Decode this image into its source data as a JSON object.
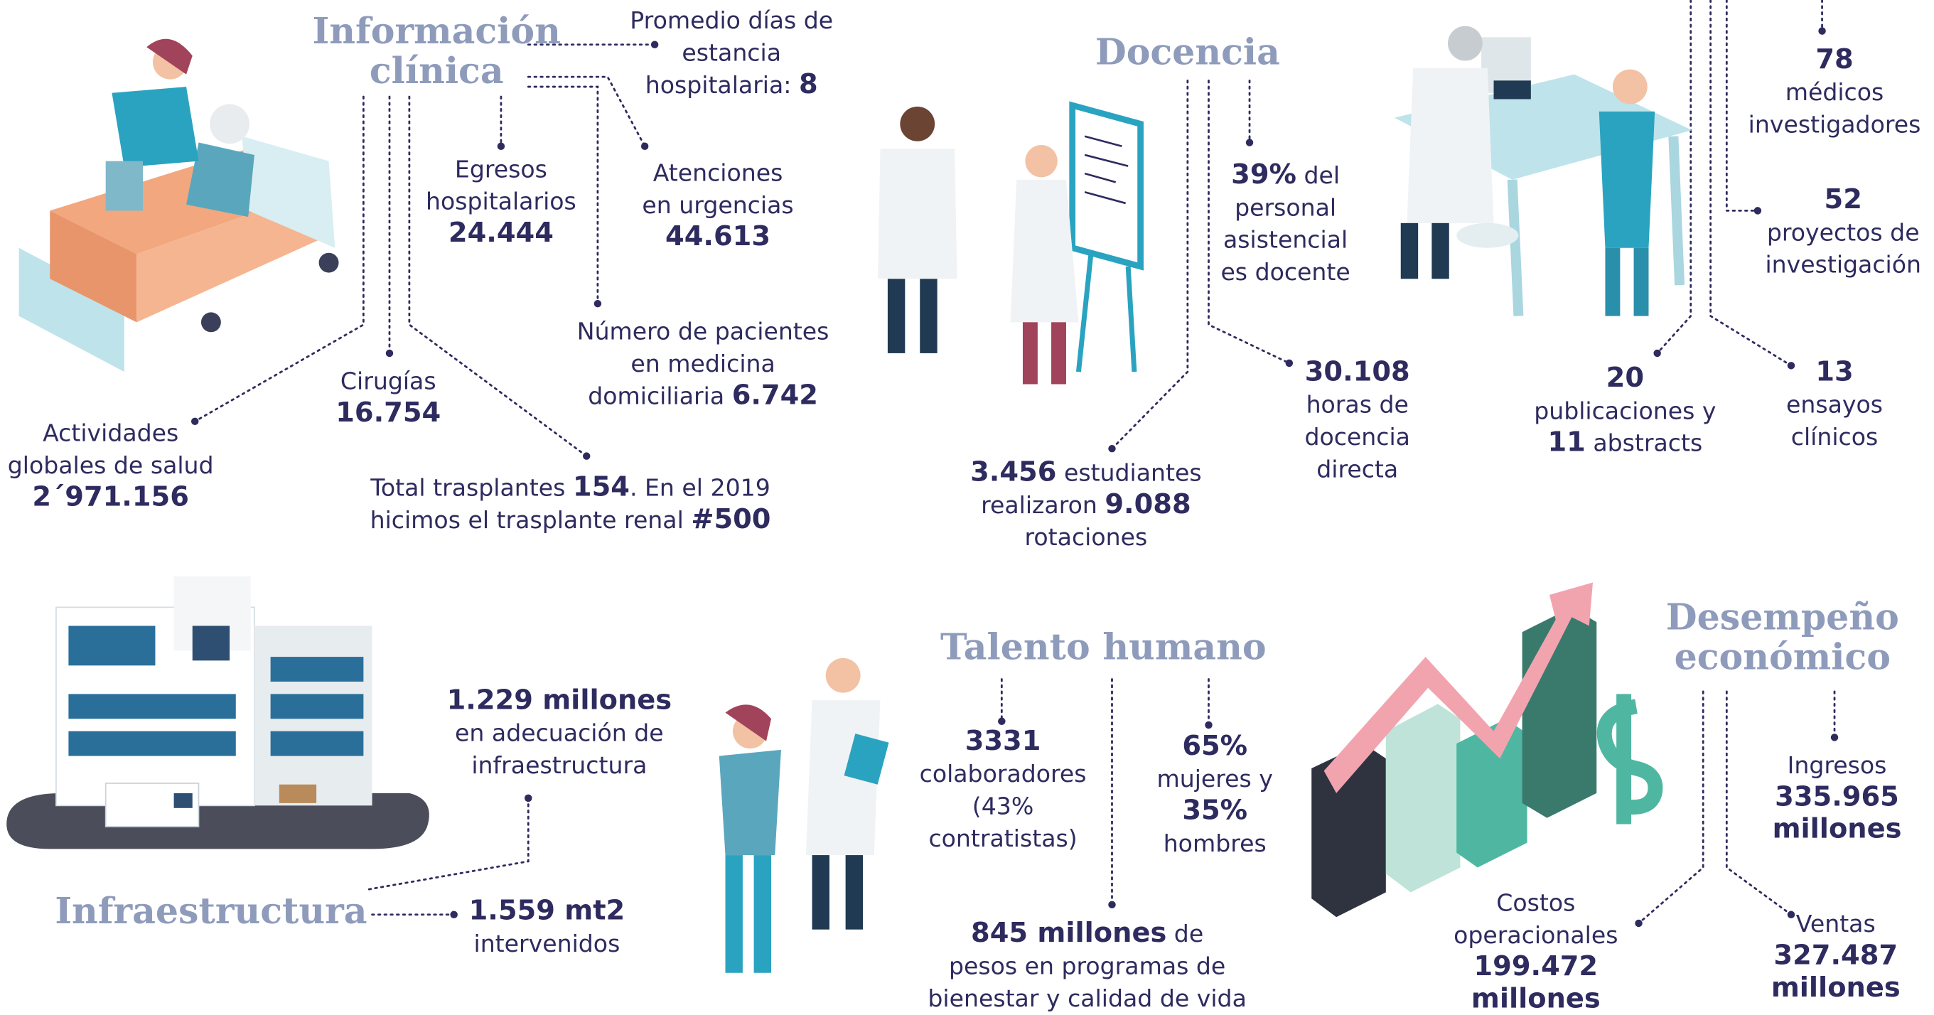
{
  "titles": [
    {
      "lines": [
        "Información",
        "clínica"
      ]
    },
    {
      "lines": [
        "Docencia"
      ]
    },
    {
      "lines": [
        "Infraestructura"
      ]
    },
    {
      "lines": [
        "Talento humano"
      ]
    },
    {
      "lines": [
        "Desempeño",
        "económico"
      ]
    }
  ],
  "stats": [
    {
      "lines": [
        [
          {
            "text": "Promedio días de"
          }
        ],
        [
          {
            "text": "estancia"
          }
        ],
        [
          {
            "text": "hospitalaria: "
          },
          {
            "strong": "8"
          }
        ]
      ]
    },
    {
      "lines": [
        [
          {
            "text": "Egresos"
          }
        ],
        [
          {
            "text": "hospitalarios"
          }
        ],
        [
          {
            "strong": "24.444"
          }
        ]
      ]
    },
    {
      "lines": [
        [
          {
            "text": "Atenciones"
          }
        ],
        [
          {
            "text": "en urgencias"
          }
        ],
        [
          {
            "strong": "44.613"
          }
        ]
      ]
    },
    {
      "lines": [
        [
          {
            "text": "Número de pacientes"
          }
        ],
        [
          {
            "text": "en medicina"
          }
        ],
        [
          {
            "text": "domiciliaria "
          },
          {
            "strong": "6.742"
          }
        ]
      ]
    },
    {
      "lines": [
        [
          {
            "text": "Cirugías"
          }
        ],
        [
          {
            "strong": "16.754"
          }
        ]
      ]
    },
    {
      "lines": [
        [
          {
            "text": "Actividades"
          }
        ],
        [
          {
            "text": "globales de salud"
          }
        ],
        [
          {
            "strong": "2´971.156"
          }
        ]
      ]
    },
    {
      "lines": [
        [
          {
            "text": "Total trasplantes "
          },
          {
            "strong": "154"
          },
          {
            "text": ". En el 2019"
          }
        ],
        [
          {
            "text": "hicimos el trasplante renal "
          },
          {
            "strong": "#500"
          }
        ]
      ]
    },
    {
      "lines": [
        [
          {
            "strong": "39%"
          },
          {
            "text": " del"
          }
        ],
        [
          {
            "text": "personal"
          }
        ],
        [
          {
            "text": "asistencial"
          }
        ],
        [
          {
            "text": "es docente"
          }
        ]
      ]
    },
    {
      "lines": [
        [
          {
            "strong": "30.108"
          }
        ],
        [
          {
            "text": "horas de"
          }
        ],
        [
          {
            "text": "docencia"
          }
        ],
        [
          {
            "text": "directa"
          }
        ]
      ]
    },
    {
      "lines": [
        [
          {
            "strong": "3.456"
          },
          {
            "text": " estudiantes"
          }
        ],
        [
          {
            "text": "realizaron "
          },
          {
            "strong": "9.088"
          }
        ],
        [
          {
            "text": "rotaciones"
          }
        ]
      ]
    },
    {
      "lines": [
        [
          {
            "strong": "78"
          }
        ],
        [
          {
            "text": "médicos"
          }
        ],
        [
          {
            "text": "investigadores"
          }
        ]
      ]
    },
    {
      "lines": [
        [
          {
            "strong": "52"
          }
        ],
        [
          {
            "text": "proyectos de"
          }
        ],
        [
          {
            "text": "investigación"
          }
        ]
      ]
    },
    {
      "lines": [
        [
          {
            "strong": "20"
          }
        ],
        [
          {
            "text": "publicaciones y"
          }
        ],
        [
          {
            "strong": "11"
          },
          {
            "text": " abstracts"
          }
        ]
      ]
    },
    {
      "lines": [
        [
          {
            "strong": "13"
          }
        ],
        [
          {
            "text": "ensayos"
          }
        ],
        [
          {
            "text": "clínicos"
          }
        ]
      ]
    },
    {
      "lines": [
        [
          {
            "strong": "1.229 millones"
          }
        ],
        [
          {
            "text": "en adecuación de"
          }
        ],
        [
          {
            "text": "infraestructura"
          }
        ]
      ]
    },
    {
      "lines": [
        [
          {
            "strong": "1.559 mt2"
          }
        ],
        [
          {
            "text": "intervenidos"
          }
        ]
      ]
    },
    {
      "lines": [
        [
          {
            "strong": "3331"
          }
        ],
        [
          {
            "text": "colaboradores"
          }
        ],
        [
          {
            "text": "(43%"
          }
        ],
        [
          {
            "text": "contratistas)"
          }
        ]
      ]
    },
    {
      "lines": [
        [
          {
            "strong": "65%"
          }
        ],
        [
          {
            "text": "mujeres y"
          }
        ],
        [
          {
            "strong": "35%"
          }
        ],
        [
          {
            "text": "hombres"
          }
        ]
      ]
    },
    {
      "lines": [
        [
          {
            "strong": "845 millones"
          },
          {
            "text": " de"
          }
        ],
        [
          {
            "text": "pesos en programas de"
          }
        ],
        [
          {
            "text": "bienestar y calidad de vida"
          }
        ]
      ]
    },
    {
      "lines": [
        [
          {
            "text": "Ingresos"
          }
        ],
        [
          {
            "strong": "335.965"
          }
        ],
        [
          {
            "strong": "millones"
          }
        ]
      ]
    },
    {
      "lines": [
        [
          {
            "text": "Costos"
          }
        ],
        [
          {
            "text": "operacionales"
          }
        ],
        [
          {
            "strong": "199.472"
          }
        ],
        [
          {
            "strong": "millones"
          }
        ]
      ]
    },
    {
      "lines": [
        [
          {
            "text": "Ventas"
          }
        ],
        [
          {
            "strong": "327.487"
          }
        ],
        [
          {
            "strong": "millones"
          }
        ]
      ]
    }
  ]
}
